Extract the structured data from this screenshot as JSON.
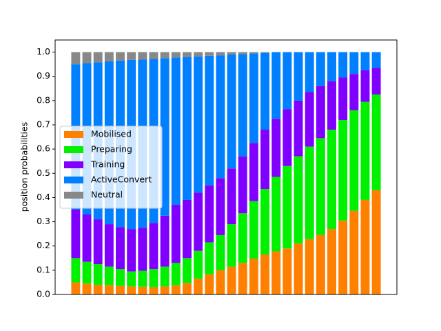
{
  "chart_data": {
    "type": "stacked_bar",
    "ylabel": "position probabilities",
    "categories": [
      null,
      null,
      null,
      null,
      null,
      null,
      null,
      null,
      null,
      null,
      null,
      null,
      null,
      null,
      null,
      null,
      null,
      null,
      null,
      null,
      null,
      null,
      null,
      null,
      null,
      null,
      null,
      null
    ],
    "series": [
      {
        "name": "Mobilised",
        "color": "#ff8000",
        "values": [
          0.05,
          0.045,
          0.04,
          0.038,
          0.035,
          0.033,
          0.032,
          0.03,
          0.033,
          0.038,
          0.048,
          0.065,
          0.083,
          0.1,
          0.115,
          0.13,
          0.148,
          0.165,
          0.178,
          0.19,
          0.21,
          0.228,
          0.245,
          0.27,
          0.305,
          0.345,
          0.39,
          0.43
        ]
      },
      {
        "name": "Preparing",
        "color": "#00f000",
        "values": [
          0.1,
          0.09,
          0.085,
          0.077,
          0.07,
          0.062,
          0.066,
          0.075,
          0.082,
          0.092,
          0.102,
          0.115,
          0.132,
          0.145,
          0.175,
          0.205,
          0.237,
          0.27,
          0.307,
          0.34,
          0.36,
          0.382,
          0.4,
          0.41,
          0.415,
          0.415,
          0.405,
          0.395
        ]
      },
      {
        "name": "Training",
        "color": "#8000ff",
        "values": [
          0.2,
          0.195,
          0.185,
          0.175,
          0.173,
          0.175,
          0.177,
          0.19,
          0.21,
          0.24,
          0.24,
          0.24,
          0.235,
          0.235,
          0.23,
          0.235,
          0.24,
          0.245,
          0.24,
          0.235,
          0.23,
          0.225,
          0.215,
          0.2,
          0.175,
          0.15,
          0.13,
          0.11
        ]
      },
      {
        "name": "ActiveConvert",
        "color": "#0080ff",
        "values": [
          0.6,
          0.625,
          0.648,
          0.672,
          0.687,
          0.698,
          0.695,
          0.677,
          0.65,
          0.608,
          0.59,
          0.562,
          0.535,
          0.507,
          0.47,
          0.422,
          0.37,
          0.317,
          0.275,
          0.235,
          0.2,
          0.165,
          0.14,
          0.12,
          0.105,
          0.09,
          0.075,
          0.065
        ]
      },
      {
        "name": "Neutral",
        "color": "#888888",
        "values": [
          0.05,
          0.045,
          0.042,
          0.038,
          0.035,
          0.032,
          0.03,
          0.028,
          0.025,
          0.022,
          0.02,
          0.018,
          0.015,
          0.013,
          0.01,
          0.008,
          0.005,
          0.003,
          0,
          0,
          0,
          0,
          0,
          0,
          0,
          0,
          0,
          0
        ]
      }
    ],
    "ylim": [
      0,
      1.05
    ],
    "yticks": [
      {
        "value": 0,
        "label": "0.0"
      },
      0.1,
      0.2,
      0.3,
      0.4,
      0.5,
      0.6,
      0.7,
      0.8,
      0.9,
      {
        "value": 1,
        "label": "1.0"
      }
    ],
    "legend": "center left"
  }
}
